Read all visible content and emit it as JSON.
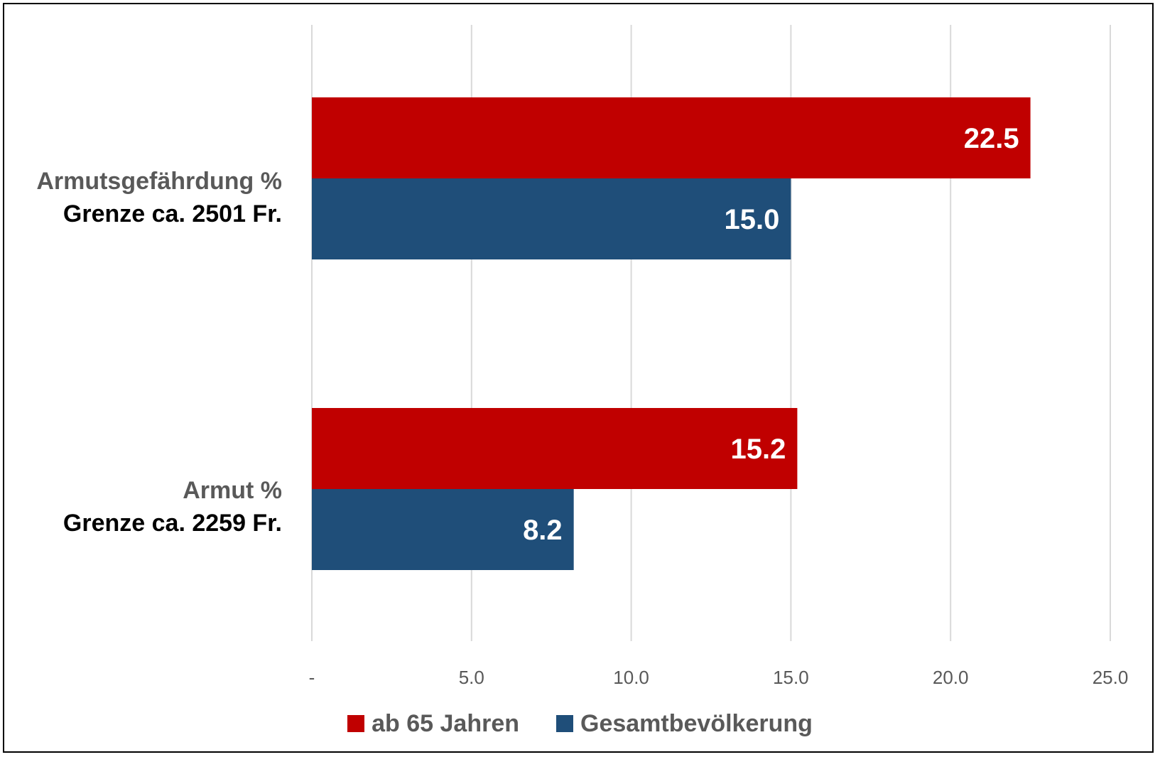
{
  "chart_data": {
    "type": "bar",
    "orientation": "horizontal",
    "categories": [
      {
        "line1": "Armutsgefährdung %",
        "line2": "Grenze ca. 2501 Fr."
      },
      {
        "line1": "Armut %",
        "line2": "Grenze ca. 2259 Fr."
      }
    ],
    "series": [
      {
        "name": "ab 65 Jahren",
        "color": "#c00000",
        "values": [
          22.5,
          15.2
        ],
        "labels": [
          "22.5",
          "15.2"
        ]
      },
      {
        "name": "Gesamtbevölkerung",
        "color": "#1f4e79",
        "values": [
          15.0,
          8.2
        ],
        "labels": [
          "15.0",
          "8.2"
        ]
      }
    ],
    "xlim": [
      0,
      25
    ],
    "xticks": [
      0,
      5,
      10,
      15,
      20,
      25
    ],
    "xtick_labels": [
      "-",
      "5.0",
      "10.0",
      "15.0",
      "20.0",
      "25.0"
    ],
    "grid": "vertical",
    "legend": "bottom",
    "title": "",
    "xlabel": "",
    "ylabel": ""
  }
}
